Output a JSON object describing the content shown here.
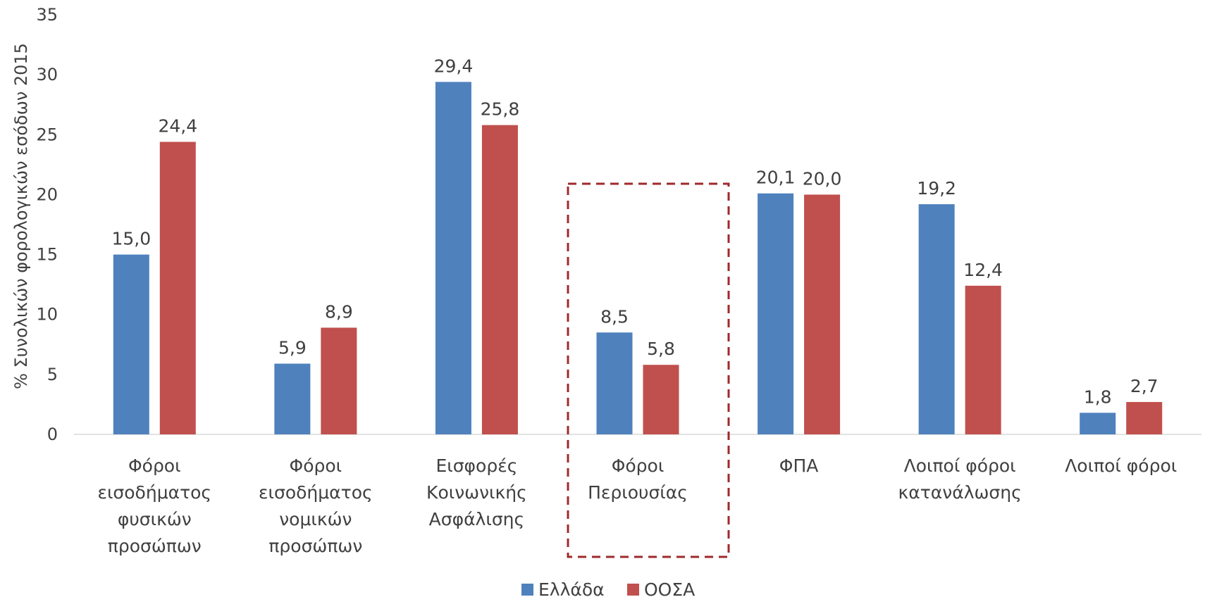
{
  "chart_data": {
    "type": "bar",
    "title": "",
    "xlabel": "",
    "ylabel": "% Συνολικών φορολογικών εσόδων 2015",
    "ylim": [
      0,
      35
    ],
    "yticks": [
      0,
      5,
      10,
      15,
      20,
      25,
      30,
      35
    ],
    "grid": false,
    "legend_position": "bottom",
    "categories": [
      [
        "Φόροι",
        "εισοδήματος",
        "φυσικών",
        "προσώπων"
      ],
      [
        "Φόροι",
        "εισοδήματος",
        "νομικών",
        "προσώπων"
      ],
      [
        "Εισφορές",
        "Κοινωνικής",
        "Ασφάλισης"
      ],
      [
        "Φόροι",
        "Περιουσίας"
      ],
      [
        "ΦΠΑ"
      ],
      [
        "Λοιποί φόροι",
        "κατανάλωσης"
      ],
      [
        "Λοιποί φόροι"
      ]
    ],
    "series": [
      {
        "name": "Ελλάδα",
        "color": "#4F81BD",
        "values": [
          15.0,
          5.9,
          29.4,
          8.5,
          20.1,
          19.2,
          1.8
        ],
        "labels": [
          "15,0",
          "5,9",
          "29,4",
          "8,5",
          "20,1",
          "19,2",
          "1,8"
        ]
      },
      {
        "name": "ΟΟΣΑ",
        "color": "#C0504D",
        "values": [
          24.4,
          8.9,
          25.8,
          5.8,
          20.0,
          12.4,
          2.7
        ],
        "labels": [
          "24,4",
          "8,9",
          "25,8",
          "5,8",
          "20,0",
          "12,4",
          "2,7"
        ]
      }
    ],
    "highlight": {
      "category_index": 3,
      "style": "dashed-box",
      "color": "#9E2A2B"
    }
  }
}
